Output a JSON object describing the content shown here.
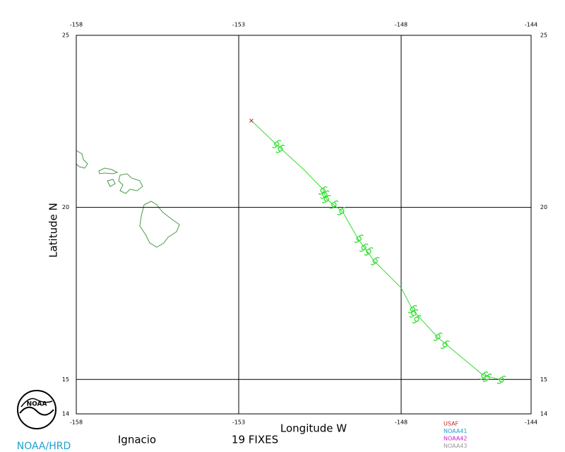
{
  "chart_data": {
    "type": "line",
    "xlabel": "Longitude W",
    "ylabel": "Latitude N",
    "storm_name": "Ignacio",
    "fixes_label": "19 FIXES",
    "credit": "NOAA/HRD",
    "logo_text": "NOAA",
    "xlim": [
      -158,
      -144
    ],
    "ylim": [
      14,
      25
    ],
    "xticks": [
      -158,
      -153,
      -148,
      -144
    ],
    "yticks": [
      14,
      15,
      20,
      25
    ],
    "grid": true,
    "track": {
      "color": "#33dd33",
      "x": [
        -152.61,
        -151.83,
        -151.0,
        -150.41,
        -150.3,
        -149.8,
        -149.33,
        -148.83,
        -148.0,
        -147.63,
        -146.87,
        -145.46,
        -144.91
      ],
      "y": [
        22.52,
        21.82,
        21.1,
        20.53,
        20.24,
        19.87,
        19.09,
        18.44,
        17.66,
        17.0,
        16.22,
        15.11,
        14.99
      ]
    },
    "start_color": "#cc2222",
    "fixes": {
      "color": "#33dd33",
      "x": [
        -151.83,
        -151.72,
        -150.41,
        -150.35,
        -150.3,
        -150.07,
        -149.83,
        -149.3,
        -149.15,
        -149.0,
        -148.8,
        -147.65,
        -147.61,
        -147.52,
        -146.87,
        -146.65,
        -145.46,
        -145.35,
        -144.91
      ],
      "y": [
        21.84,
        21.7,
        20.49,
        20.37,
        20.24,
        20.08,
        19.89,
        19.09,
        18.83,
        18.72,
        18.44,
        17.04,
        16.92,
        16.75,
        16.24,
        16.01,
        15.11,
        15.05,
        14.99
      ]
    },
    "aircraft": [
      {
        "name": "USAF",
        "color": "#cc2222"
      },
      {
        "name": "NOAA41",
        "color": "#1fa0d0"
      },
      {
        "name": "NOAA42",
        "color": "#cc22cc"
      },
      {
        "name": "NOAA43",
        "color": "#999999"
      }
    ]
  }
}
